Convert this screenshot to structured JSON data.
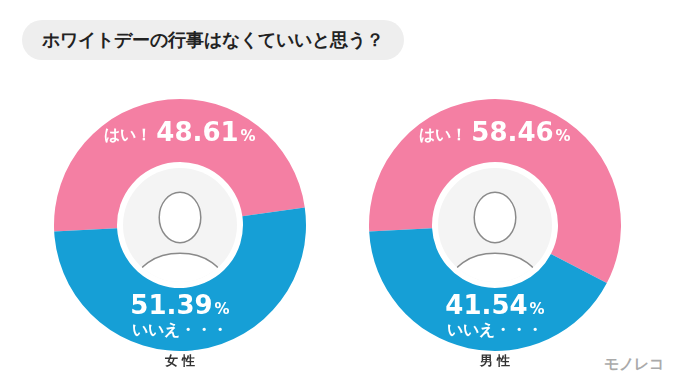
{
  "title": "ホワイトデーの行事はなくていいと思う？",
  "logo": "モノレコ",
  "chart_data": [
    {
      "type": "doughnut",
      "title": "女 性",
      "categories": [
        "はい！",
        "いいえ・・・"
      ],
      "values": [
        48.61,
        51.39
      ],
      "value_labels": [
        "48.61%",
        "51.39%"
      ],
      "colors": [
        "#f47fa3",
        "#169fd6"
      ],
      "data_labels": true
    },
    {
      "type": "doughnut",
      "title": "男 性",
      "categories": [
        "はい！",
        "いいえ・・・"
      ],
      "values": [
        58.46,
        41.54
      ],
      "value_labels": [
        "58.46%",
        "41.54%"
      ],
      "colors": [
        "#f47fa3",
        "#169fd6"
      ],
      "data_labels": true
    }
  ]
}
